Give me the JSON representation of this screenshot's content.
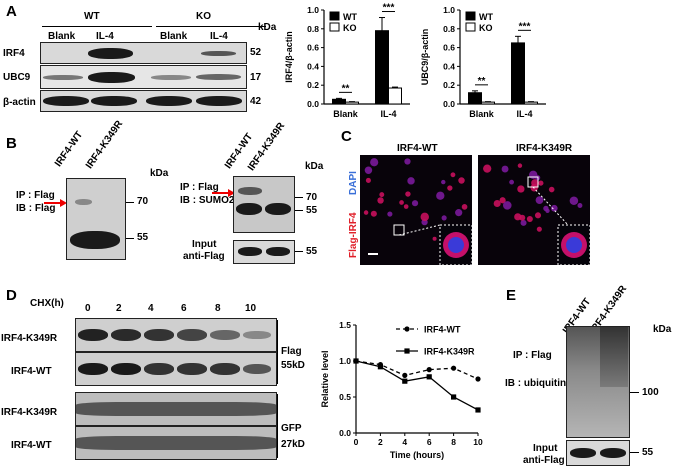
{
  "panels": {
    "A": "A",
    "B": "B",
    "C": "C",
    "D": "D",
    "E": "E"
  },
  "panelA": {
    "wt": "WT",
    "ko": "KO",
    "lanes": [
      "Blank",
      "IL-4",
      "Blank",
      "IL-4"
    ],
    "rows": [
      "IRF4",
      "UBC9",
      "β-actin"
    ],
    "kda_title": "kDa",
    "kdas": [
      "52",
      "17",
      "42"
    ]
  },
  "chart_data": [
    {
      "type": "bar",
      "categories": [
        "Blank",
        "IL-4"
      ],
      "series": [
        {
          "name": "WT",
          "values": [
            0.05,
            0.78
          ],
          "err": [
            0.01,
            0.14
          ]
        },
        {
          "name": "KO",
          "values": [
            0.02,
            0.17
          ],
          "err": [
            0.005,
            0.01
          ]
        }
      ],
      "ylabel": "IRF4/β-actin",
      "ylim": [
        0,
        1.0
      ],
      "yticks": [
        "0.0",
        "0.2",
        "0.4",
        "0.6",
        "0.8",
        "1.0"
      ],
      "sig": [
        "**",
        "***"
      ],
      "legend": "top-left"
    },
    {
      "type": "bar",
      "categories": [
        "Blank",
        "IL-4"
      ],
      "series": [
        {
          "name": "WT",
          "values": [
            0.12,
            0.65
          ],
          "err": [
            0.02,
            0.07
          ]
        },
        {
          "name": "KO",
          "values": [
            0.02,
            0.02
          ],
          "err": [
            0.005,
            0.005
          ]
        }
      ],
      "ylabel": "UBC9/β-actin",
      "ylim": [
        0,
        1.0
      ],
      "yticks": [
        "0.0",
        "0.2",
        "0.4",
        "0.6",
        "0.8",
        "1.0"
      ],
      "sig": [
        "**",
        "***"
      ],
      "legend": "top-left"
    },
    {
      "type": "line",
      "x": [
        0,
        2,
        4,
        6,
        8,
        10
      ],
      "series": [
        {
          "name": "IRF4-WT",
          "values": [
            1.0,
            0.95,
            0.8,
            0.88,
            0.9,
            0.75
          ],
          "style": "dashed",
          "marker": "circle"
        },
        {
          "name": "IRF4-K349R",
          "values": [
            1.0,
            0.92,
            0.72,
            0.78,
            0.5,
            0.32
          ],
          "style": "solid",
          "marker": "square"
        }
      ],
      "xlabel": "Time (hours)",
      "ylabel": "Relative level",
      "ylim": [
        0,
        1.5
      ],
      "yticks": [
        "0.0",
        "0.5",
        "1.0",
        "1.5"
      ],
      "xticks": [
        "0",
        "2",
        "4",
        "6",
        "8",
        "10"
      ],
      "legend": "top-right"
    }
  ],
  "panelB": {
    "lanes": [
      "IRF4-WT",
      "IRF4-K349R"
    ],
    "left_ip": "IP : Flag",
    "left_ib": "IB : Flag",
    "right_ip": "IP : Flag",
    "right_ib": "IB : SUMO2/3",
    "input": "Input",
    "anti": "anti-Flag",
    "kda_title": "kDa",
    "left_kdas": [
      "70",
      "55"
    ],
    "right_kdas": [
      "70",
      "55",
      "55"
    ]
  },
  "panelC": {
    "cols": [
      "IRF4-WT",
      "IRF4-K349R"
    ],
    "dapi": "DAPI",
    "flag": "Flag-IRF4"
  },
  "panelD": {
    "chx": "CHX(h)",
    "times": [
      "0",
      "2",
      "4",
      "6",
      "8",
      "10"
    ],
    "rows": [
      "IRF4-K349R",
      "IRF4-WT",
      "IRF4-K349R",
      "IRF4-WT"
    ],
    "flag": "Flag",
    "flag_kd": "55kD",
    "gfp": "GFP",
    "gfp_kd": "27kD"
  },
  "panelE": {
    "lanes": [
      "IRF4-WT",
      "IRF4-K349R"
    ],
    "kda_title": "kDa",
    "ip": "IP : Flag",
    "ib": "IB : ubiquitin",
    "kdas": [
      "100",
      "55"
    ],
    "input": "Input",
    "anti": "anti-Flag"
  }
}
